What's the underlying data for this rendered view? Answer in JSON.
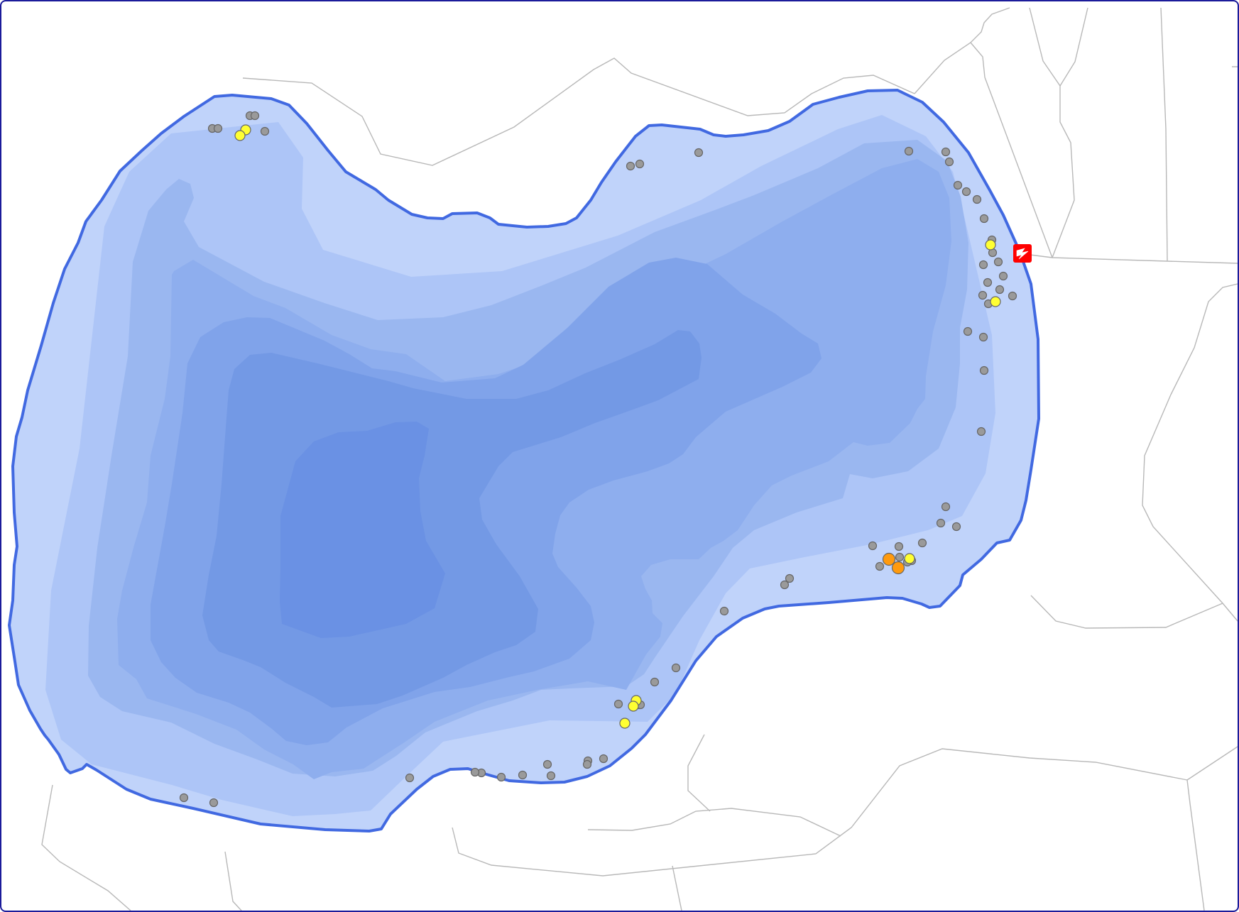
{
  "map": {
    "water_color": "#c0d3fa",
    "shoreline_color": "#4169e1",
    "depth_colors": [
      "#c0d3fa",
      "#adc5f7",
      "#9ab7f0",
      "#8eaeee",
      "#80a3ea",
      "#7399e5",
      "#6a91e4"
    ],
    "boundary_color": "#b8b8b8",
    "frame_color": "#1b1b9a"
  },
  "markers": {
    "legend": {
      "gray": "#9a9a9a",
      "yellow": "#ffff33",
      "orange": "#ff9a0e"
    },
    "station_icon": "red-square-lightning-icon",
    "station_color": "#ff0000"
  }
}
